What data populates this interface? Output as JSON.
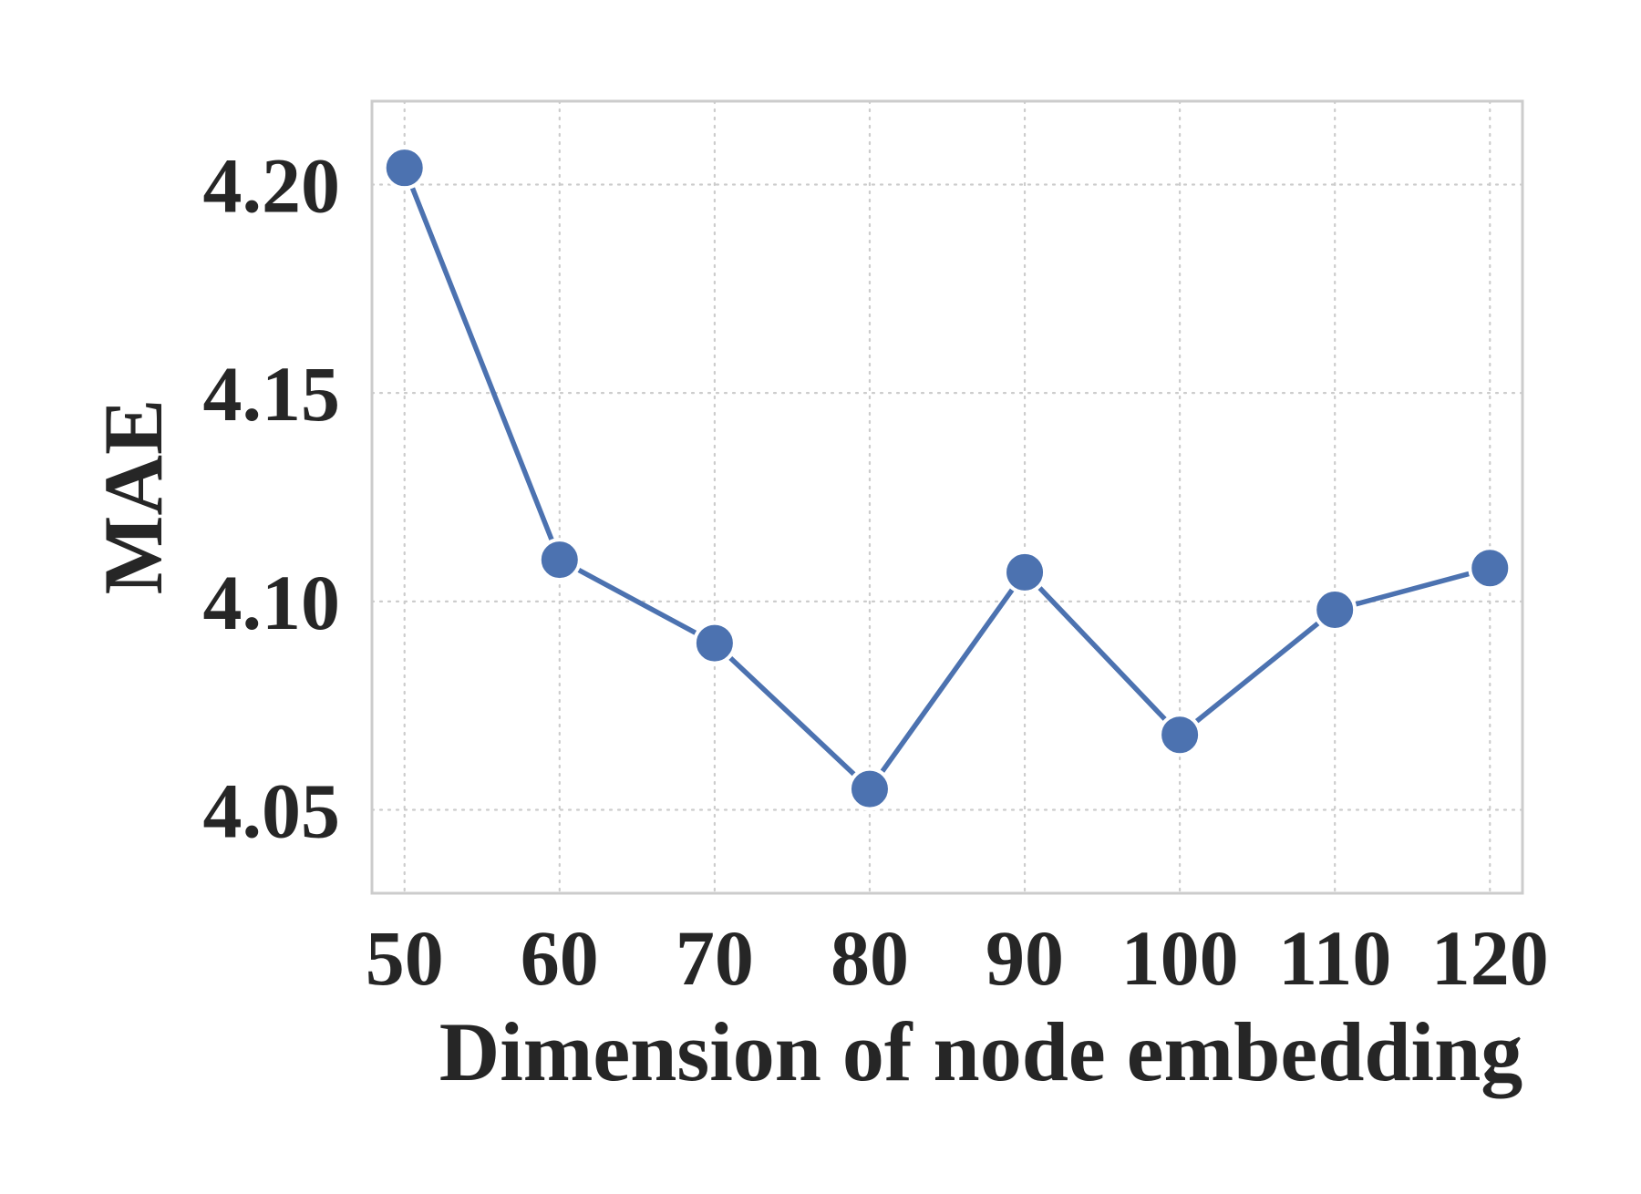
{
  "chart_data": {
    "type": "line",
    "title": "",
    "xlabel": "Dimension of node embedding",
    "ylabel": "MAE",
    "x": [
      50,
      60,
      70,
      80,
      90,
      100,
      110,
      120
    ],
    "series": [
      {
        "values": [
          4.204,
          4.11,
          4.09,
          4.055,
          4.107,
          4.068,
          4.098,
          4.108
        ]
      }
    ],
    "x_ticks": [
      50,
      60,
      70,
      80,
      90,
      100,
      110,
      120
    ],
    "x_tick_labels": [
      "50",
      "60",
      "70",
      "80",
      "90",
      "100",
      "110",
      "120"
    ],
    "y_ticks": [
      4.05,
      4.1,
      4.15,
      4.2
    ],
    "y_tick_labels": [
      "4.05",
      "4.10",
      "4.15",
      "4.20"
    ],
    "xlim": [
      47.9,
      122.1
    ],
    "ylim": [
      4.03,
      4.22
    ],
    "grid": true,
    "legend": "none",
    "colors": {
      "series": "#4c72b0",
      "grid": "#cccccc",
      "frame": "#cccccc",
      "text": "#262626"
    }
  }
}
